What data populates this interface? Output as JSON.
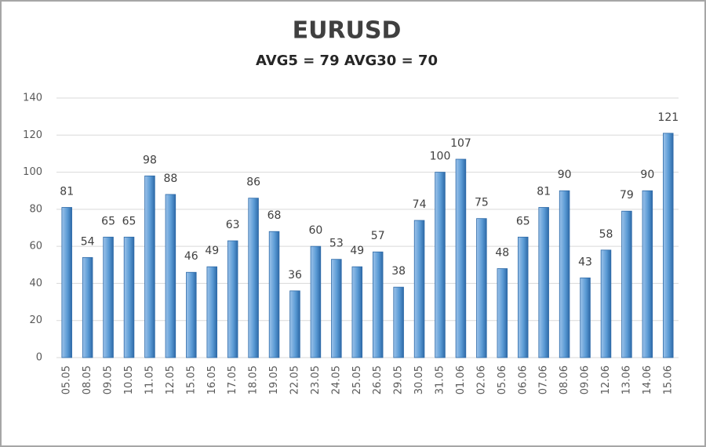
{
  "chart_data": {
    "type": "bar",
    "title": "EURUSD",
    "subtitle": "AVG5 = 79 AVG30 = 70",
    "categories": [
      "05.05",
      "08.05",
      "09.05",
      "10.05",
      "11.05",
      "12.05",
      "15.05",
      "16.05",
      "17.05",
      "18.05",
      "19.05",
      "22.05",
      "23.05",
      "24.05",
      "25.05",
      "26.05",
      "29.05",
      "30.05",
      "31.05",
      "01.06",
      "02.06",
      "05.06",
      "06.06",
      "07.06",
      "08.06",
      "09.06",
      "12.06",
      "13.06",
      "14.06",
      "15.06"
    ],
    "values": [
      81,
      54,
      65,
      65,
      98,
      88,
      46,
      49,
      63,
      86,
      68,
      36,
      60,
      53,
      49,
      57,
      38,
      74,
      100,
      107,
      75,
      48,
      65,
      81,
      90,
      43,
      58,
      79,
      90,
      121
    ],
    "color": "#5b9bd5",
    "ylim": [
      0,
      140
    ],
    "yticks": [
      0,
      20,
      40,
      60,
      80,
      100,
      120,
      140
    ],
    "grid": true
  }
}
